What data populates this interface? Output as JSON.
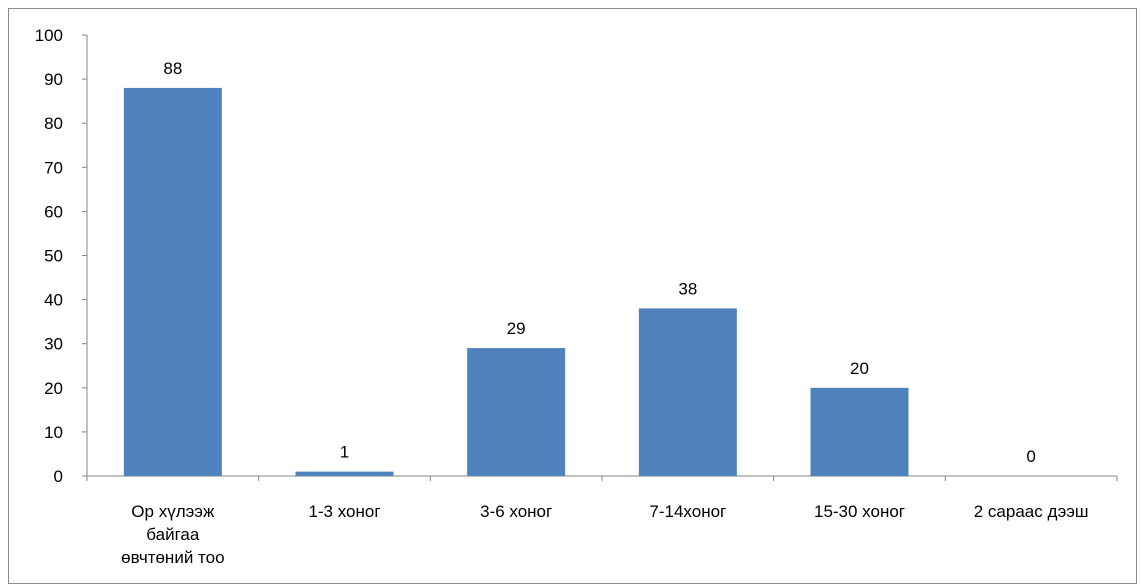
{
  "chart_data": {
    "type": "bar",
    "categories": [
      [
        "Ор хүлээж",
        "байгаа",
        "өвчтөний тоо"
      ],
      [
        "1-3 хоног"
      ],
      [
        "3-6 хоног"
      ],
      [
        "7-14хоног"
      ],
      [
        "15-30 хоног"
      ],
      [
        "2 сараас  дээш"
      ]
    ],
    "values": [
      88,
      1,
      29,
      38,
      20,
      0
    ],
    "ylim": [
      0,
      100
    ],
    "yticks": [
      0,
      10,
      20,
      30,
      40,
      50,
      60,
      70,
      80,
      90,
      100
    ],
    "grid": false,
    "legend": "none",
    "colors": {
      "bar": "#4f81bd",
      "axis": "#868686"
    }
  }
}
